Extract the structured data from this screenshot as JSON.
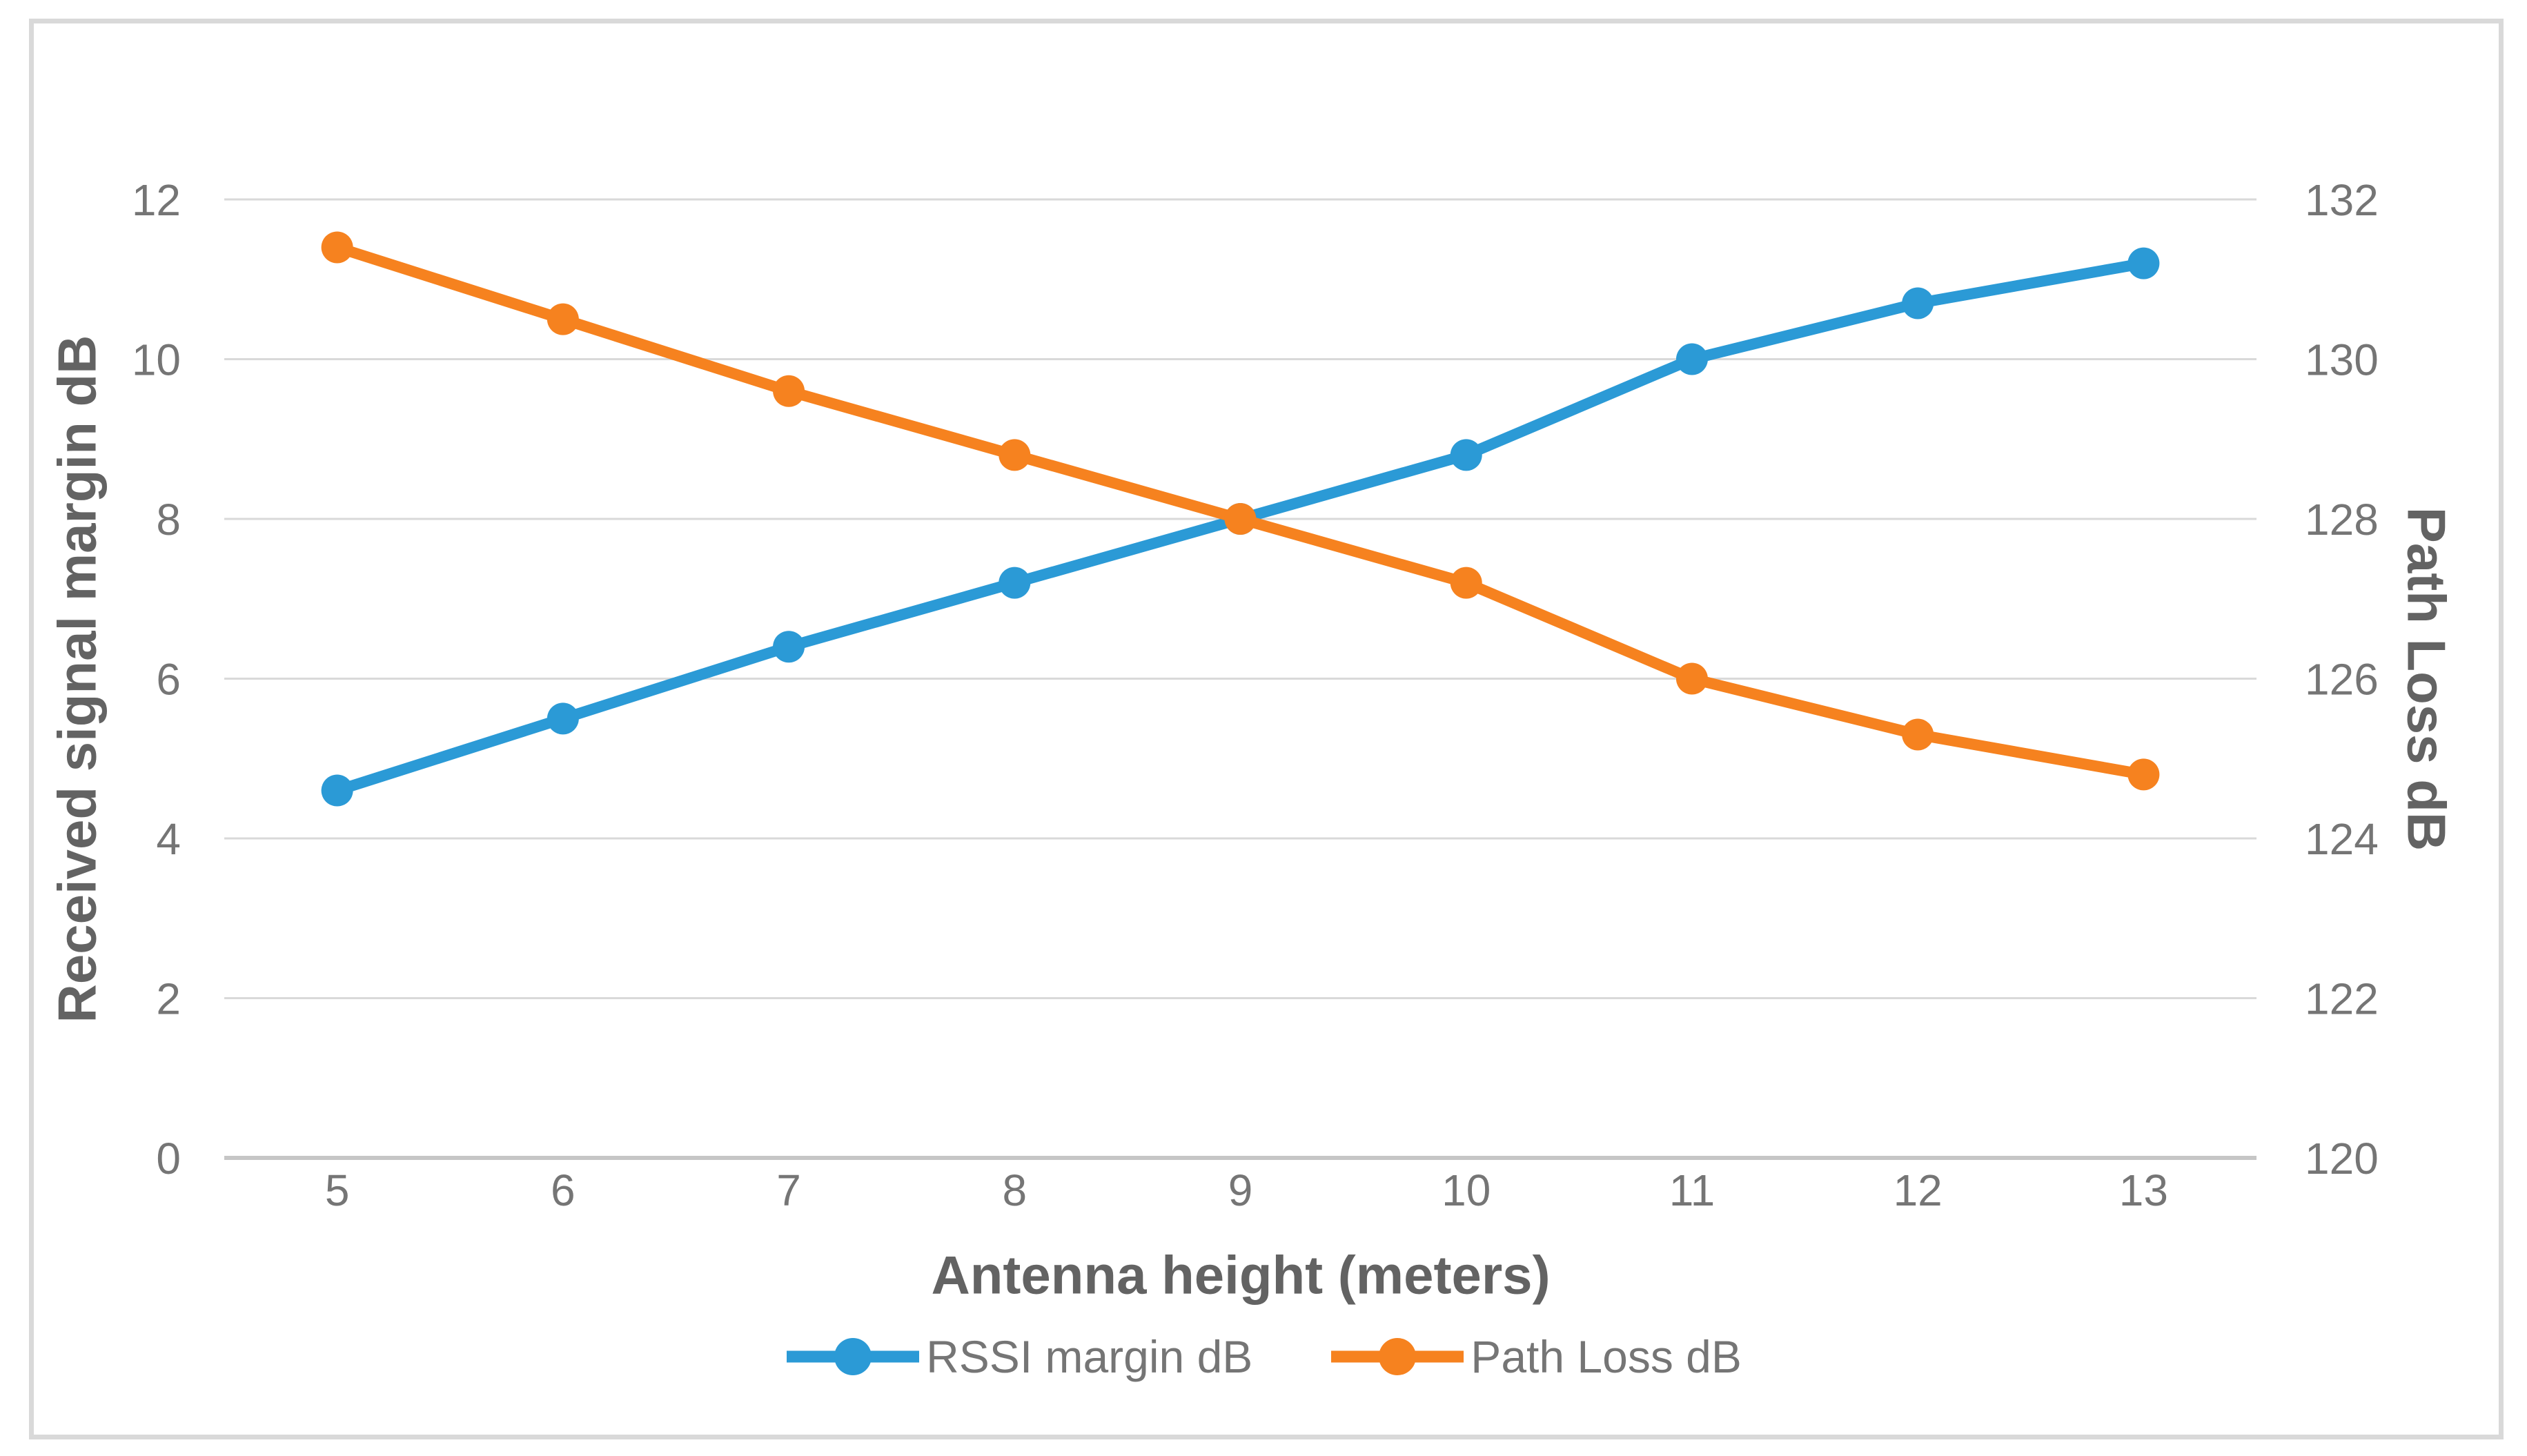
{
  "figure": {
    "background": "#FFFFFF",
    "border_color": "#D9D9D9",
    "grid_color": "#D9D9D9",
    "axis_line_color": "#C6C6C6",
    "tick_text_color": "#757575",
    "title_text_color": "#636363"
  },
  "chart_data": {
    "type": "line",
    "title": "",
    "x_categories": [
      "5",
      "6",
      "7",
      "8",
      "9",
      "10",
      "11",
      "12",
      "13"
    ],
    "xlabel": "Antenna height (meters)",
    "left_axis": {
      "label": "Received signal margin dB",
      "ticks": [
        12,
        10,
        8,
        6,
        4,
        2,
        0
      ],
      "min": 0,
      "max": 12
    },
    "right_axis": {
      "label": "Path Loss dB",
      "ticks": [
        132,
        130,
        128,
        126,
        124,
        122,
        120
      ],
      "min": 120,
      "max": 132
    },
    "grid": true,
    "legend_position": "bottom",
    "series": [
      {
        "name": "RSSI margin dB",
        "axis": "left",
        "color": "#2B9AD6",
        "marker": "circle",
        "values": [
          4.6,
          5.5,
          6.4,
          7.2,
          8.0,
          8.8,
          10.0,
          10.7,
          11.2
        ]
      },
      {
        "name": "Path Loss dB",
        "axis": "right",
        "color": "#F6821F",
        "marker": "circle",
        "values": [
          131.4,
          130.5,
          129.6,
          128.8,
          128.0,
          127.2,
          126.0,
          125.3,
          124.8
        ]
      }
    ]
  }
}
